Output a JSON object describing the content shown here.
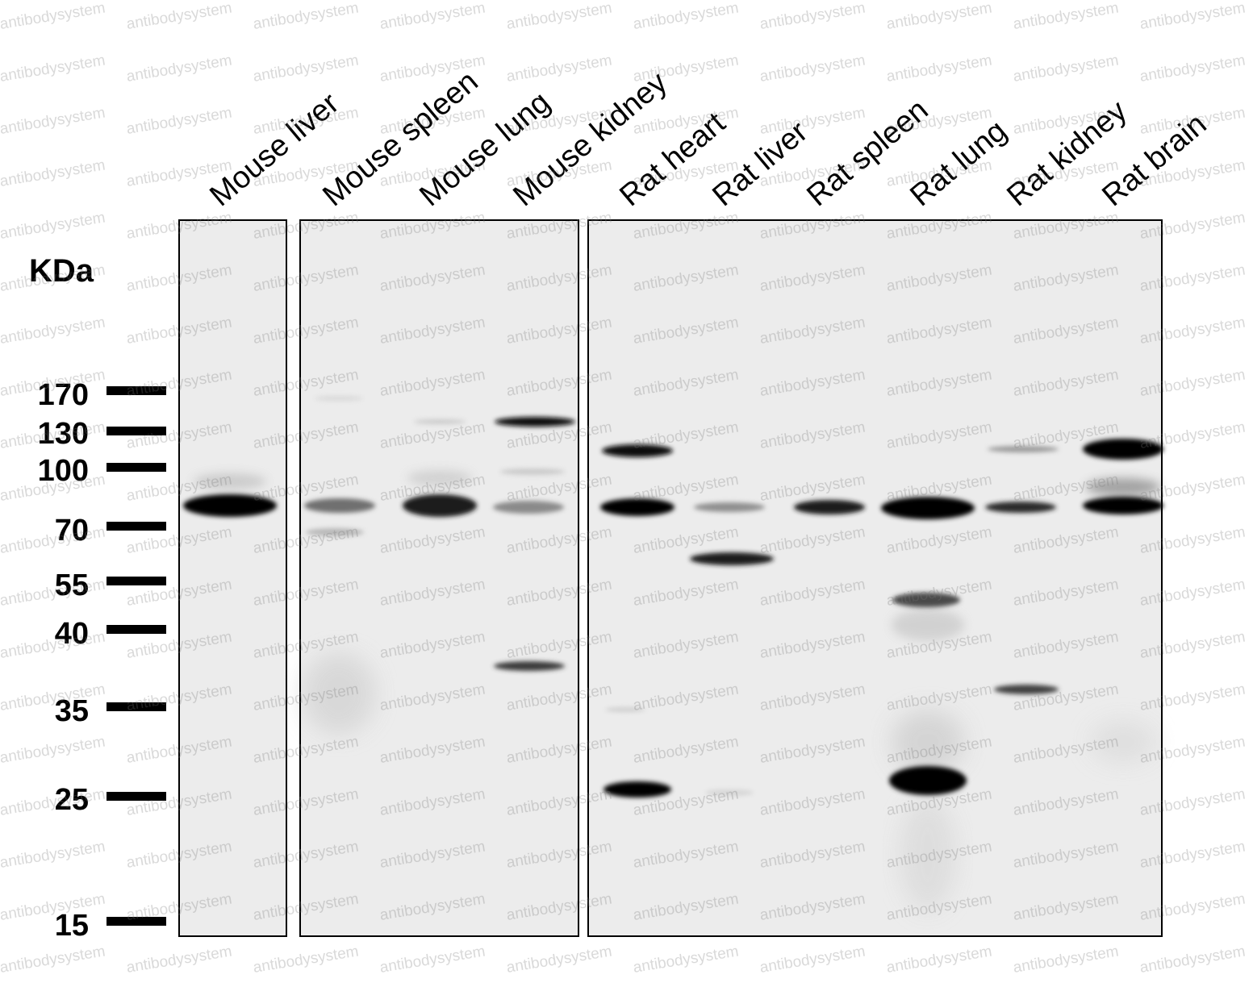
{
  "unit_label": "KDa",
  "lanes": [
    {
      "label": "Mouse liver"
    },
    {
      "label": "Mouse spleen"
    },
    {
      "label": "Mouse lung"
    },
    {
      "label": "Mouse kidney"
    },
    {
      "label": "Rat heart"
    },
    {
      "label": "Rat liver"
    },
    {
      "label": "Rat spleen"
    },
    {
      "label": "Rat lung"
    },
    {
      "label": "Rat kidney"
    },
    {
      "label": "Rat brain"
    }
  ],
  "markers": [
    "170",
    "130",
    "100",
    "70",
    "55",
    "40",
    "35",
    "25",
    "15"
  ],
  "watermark": "antibodysystem",
  "colors": {
    "membrane": "#ececec",
    "band": "#000000",
    "frame": "#000000"
  }
}
